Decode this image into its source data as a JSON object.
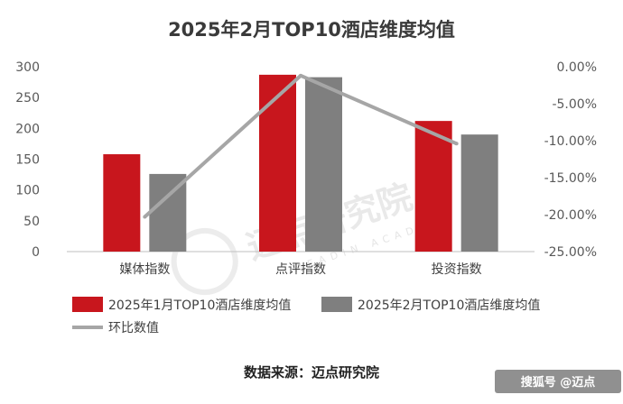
{
  "chart_data": {
    "type": "bar",
    "title": "2025年2月TOP10酒店维度均值",
    "categories": [
      "媒体指数",
      "点评指数",
      "投资指数"
    ],
    "series": [
      {
        "name": "2025年1月TOP10酒店维度均值",
        "kind": "bar",
        "axis": "left",
        "color": "#c8161d",
        "values": [
          158,
          287,
          212
        ]
      },
      {
        "name": "2025年2月TOP10酒店维度均值",
        "kind": "bar",
        "axis": "left",
        "color": "#7f7f7f",
        "values": [
          126,
          283,
          190
        ]
      },
      {
        "name": "环比数值",
        "kind": "line",
        "axis": "right",
        "color": "#a6a6a6",
        "values": [
          -20.3,
          -1.2,
          -10.4
        ]
      }
    ],
    "ylim": [
      0,
      300
    ],
    "yticks": [
      "0",
      "50",
      "100",
      "150",
      "200",
      "250",
      "300"
    ],
    "y2lim": [
      -25,
      0
    ],
    "y2ticks": [
      "0.00%",
      "-5.00%",
      "-10.00%",
      "-15.00%",
      "-20.00%",
      "-25.00%"
    ],
    "legend_position": "bottom",
    "grid": false
  },
  "source": "数据来源：迈点研究院",
  "watermark": {
    "main": "迈点研究院",
    "sub": "MEADIN ACADEMY"
  },
  "brand": "搜狐号 @迈点"
}
